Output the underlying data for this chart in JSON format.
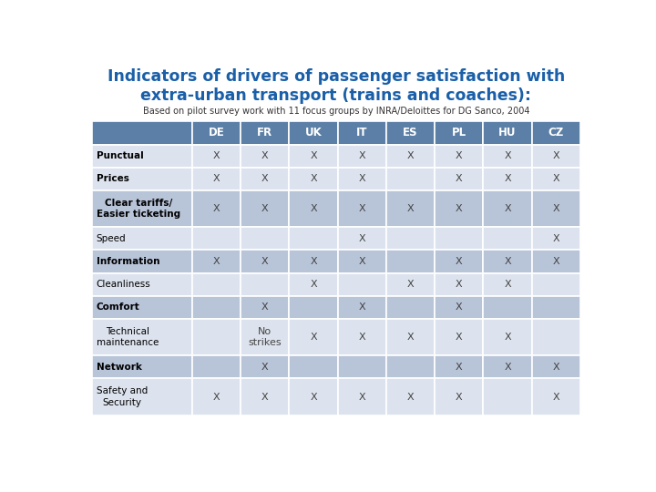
{
  "title_line1": "Indicators of drivers of passenger satisfaction with",
  "title_line2": "extra-urban transport (trains and coaches):",
  "subtitle": "Based on pilot survey work with 11 focus groups by INRA/Deloittes for DG Sanco, 2004",
  "header_cols": [
    "DE",
    "FR",
    "UK",
    "IT",
    "ES",
    "PL",
    "HU",
    "CZ"
  ],
  "rows": [
    {
      "label": "Punctual",
      "values": [
        "X",
        "X",
        "X",
        "X",
        "X",
        "X",
        "X",
        "X"
      ],
      "dark": false
    },
    {
      "label": "Prices",
      "values": [
        "X",
        "X",
        "X",
        "X",
        "",
        "X",
        "X",
        "X"
      ],
      "dark": false
    },
    {
      "label": "Clear tariffs/\nEasier ticketing",
      "values": [
        "X",
        "X",
        "X",
        "X",
        "X",
        "X",
        "X",
        "X"
      ],
      "dark": true
    },
    {
      "label": "Speed",
      "values": [
        "",
        "",
        "",
        "X",
        "",
        "",
        "",
        "X"
      ],
      "dark": false
    },
    {
      "label": "Information",
      "values": [
        "X",
        "X",
        "X",
        "X",
        "",
        "X",
        "X",
        "X"
      ],
      "dark": true
    },
    {
      "label": "Cleanliness",
      "values": [
        "",
        "",
        "X",
        "",
        "X",
        "X",
        "X",
        ""
      ],
      "dark": false
    },
    {
      "label": "Comfort",
      "values": [
        "",
        "X",
        "",
        "X",
        "",
        "X",
        "",
        ""
      ],
      "dark": true
    },
    {
      "label": "Technical\nmaintenance",
      "values": [
        "",
        "No\nstrikes",
        "X",
        "X",
        "X",
        "X",
        "X",
        ""
      ],
      "dark": false
    },
    {
      "label": "Network",
      "values": [
        "",
        "X",
        "",
        "",
        "",
        "X",
        "X",
        "X"
      ],
      "dark": true
    },
    {
      "label": "Safety and\nSecurity",
      "values": [
        "X",
        "X",
        "X",
        "X",
        "X",
        "X",
        "",
        "X"
      ],
      "dark": false
    }
  ],
  "header_bg": "#5b7fa6",
  "header_text_color": "#ffffff",
  "row_dark_bg": "#b8c4d8",
  "row_light_bg": "#dde3ee",
  "label_bold_rows": [
    0,
    1,
    2,
    4,
    6,
    8
  ],
  "label_text_color": "#000000",
  "cell_text_color": "#444444",
  "title_color": "#1a5fa8",
  "subtitle_color": "#333333",
  "background_color": "#ffffff"
}
